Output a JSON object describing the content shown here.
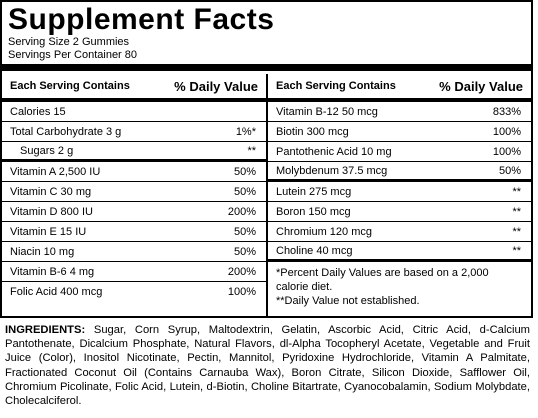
{
  "title": "Supplement Facts",
  "serving_size": "Serving Size 2 Gummies",
  "servings_per_container": "Servings Per Container 80",
  "left_header": {
    "name": "Each Serving Contains",
    "dv": "% Daily Value"
  },
  "right_header": {
    "name": "Each Serving Contains",
    "dv": "% Daily Value"
  },
  "left_rows": [
    {
      "name": "Calories 15",
      "dv": ""
    },
    {
      "name": "Total Carbohydrate 3 g",
      "dv": "1%*"
    },
    {
      "name": "Sugars 2 g",
      "dv": "**"
    },
    {
      "name": "Vitamin A 2,500 IU",
      "dv": "50%"
    },
    {
      "name": "Vitamin C 30 mg",
      "dv": "50%"
    },
    {
      "name": "Vitamin D 800 IU",
      "dv": "200%"
    },
    {
      "name": "Vitamin E 15 IU",
      "dv": "50%"
    },
    {
      "name": "Niacin 10 mg",
      "dv": "50%"
    },
    {
      "name": "Vitamin B-6 4 mg",
      "dv": "200%"
    },
    {
      "name": "Folic Acid 400 mcg",
      "dv": "100%"
    }
  ],
  "right_rows": [
    {
      "name": "Vitamin B-12 50 mcg",
      "dv": "833%"
    },
    {
      "name": "Biotin 300 mcg",
      "dv": "100%"
    },
    {
      "name": "Pantothenic Acid 10 mg",
      "dv": "100%"
    },
    {
      "name": "Molybdenum 37.5 mcg",
      "dv": "50%"
    },
    {
      "name": "Lutein 275 mcg",
      "dv": "**"
    },
    {
      "name": "Boron 150 mcg",
      "dv": "**"
    },
    {
      "name": "Chromium 120 mcg",
      "dv": "**"
    },
    {
      "name": "Choline 40 mcg",
      "dv": "**"
    }
  ],
  "footnote_1": "*Percent Daily Values are based on a 2,000 calorie diet.",
  "footnote_2": "**Daily Value not established.",
  "ingredients_label": "INGREDIENTS:",
  "ingredients_text": "Sugar, Corn Syrup, Maltodextrin, Gelatin, Ascorbic Acid, Citric Acid, d-Calcium Pantothenate, Dicalcium Phosphate, Natural Flavors, dl-Alpha Tocopheryl Acetate, Vegetable and Fruit Juice (Color), Inositol Nicotinate, Pectin, Mannitol, Pyridoxine Hydrochloride, Vitamin A Palmitate, Fractionated Coconut Oil (Contains Carnauba Wax), Boron Citrate, Silicon Dioxide, Safflower Oil, Chromium Picolinate, Folic Acid, Lutein, d-Biotin, Choline Bitartrate, Cyanocobalamin, Sodium Molybdate, Cholecalciferol."
}
